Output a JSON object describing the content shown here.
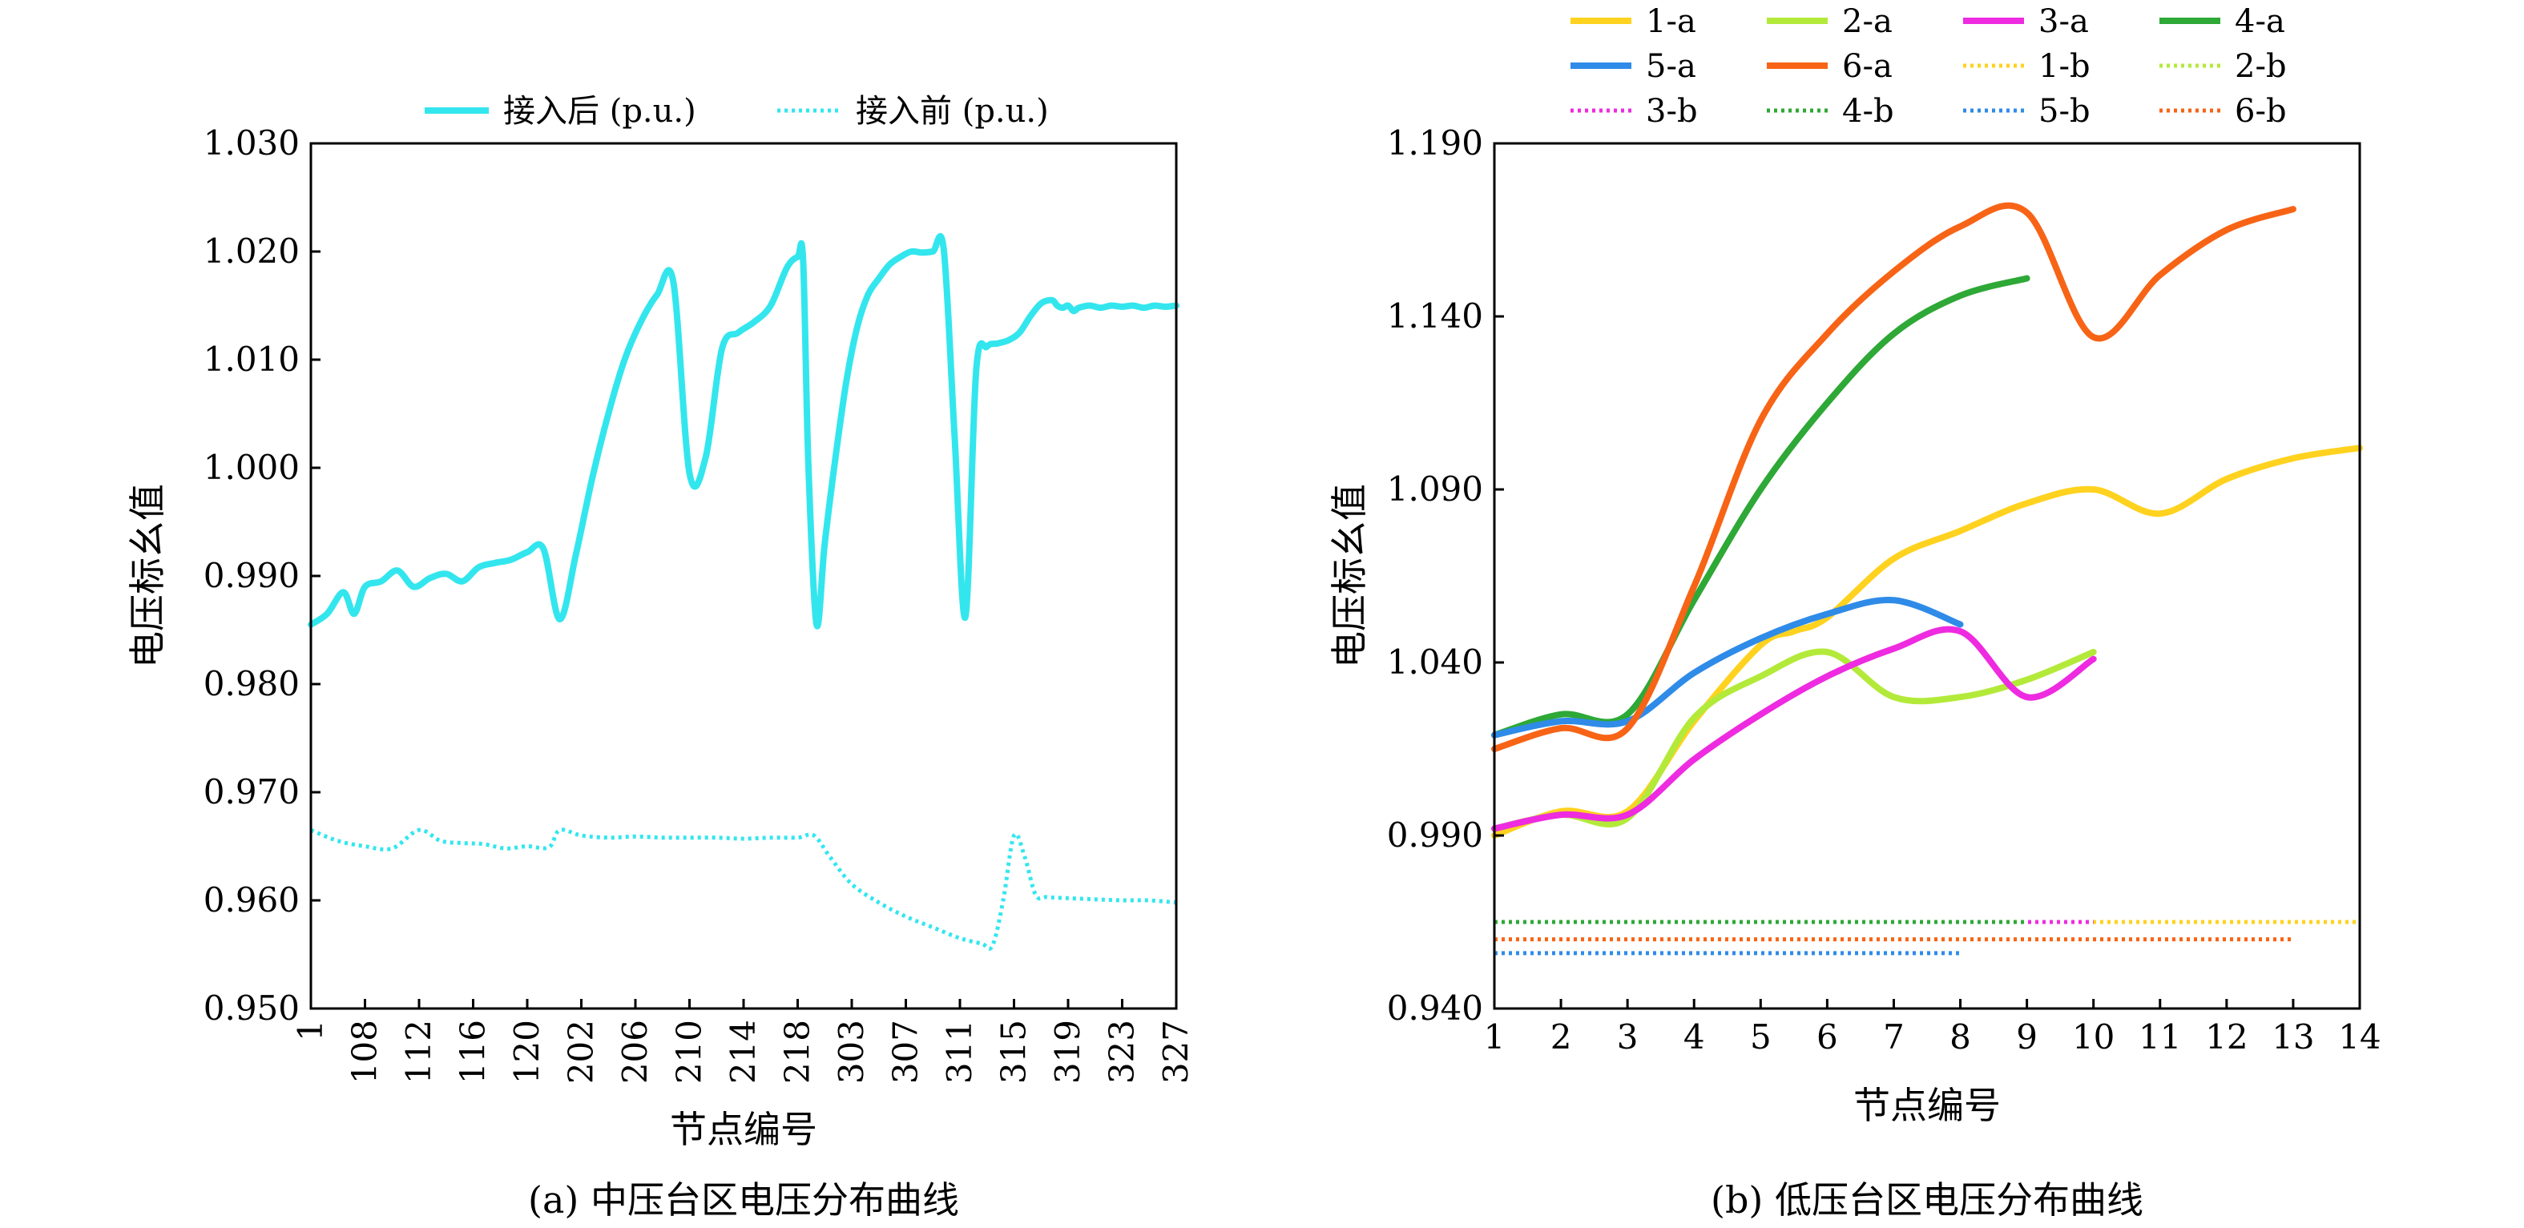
{
  "chart_data": [
    {
      "type": "line",
      "caption": "(a) 中压台区电压分布曲线",
      "xlabel": "节点编号",
      "ylabel": "电压标幺值",
      "ylim": [
        0.95,
        1.03
      ],
      "yticks": [
        "0.950",
        "0.960",
        "0.970",
        "0.980",
        "0.990",
        "1.000",
        "1.010",
        "1.020",
        "1.030"
      ],
      "xticks": [
        "1",
        "108",
        "112",
        "116",
        "120",
        "202",
        "206",
        "210",
        "214",
        "218",
        "303",
        "307",
        "311",
        "315",
        "319",
        "323",
        "327"
      ],
      "legend_position": "top",
      "series": [
        {
          "name": "接入后 (p.u.)",
          "color": "#33e6ee",
          "style": "solid",
          "x": [
            1,
            1.3,
            1.6,
            1.8,
            2.0,
            2.3,
            2.6,
            2.9,
            3.2,
            3.5,
            3.8,
            4.1,
            4.4,
            4.7,
            5.0,
            5.3,
            5.6,
            5.9,
            6.2,
            6.5,
            6.8,
            7.1,
            7.4,
            7.7,
            8.0,
            8.3,
            8.6,
            8.9,
            9.2,
            9.5,
            9.8,
            10.0,
            10.1,
            10.2,
            10.35,
            10.5,
            10.7,
            10.9,
            11.1,
            11.3,
            11.5,
            11.7,
            11.9,
            12.1,
            12.3,
            12.5,
            12.7,
            12.9,
            13.1,
            13.3,
            13.5,
            13.7,
            13.9,
            14.1,
            14.3,
            14.5,
            14.7,
            14.8,
            14.9,
            15.0,
            15.1,
            15.2,
            15.4,
            15.6,
            15.8,
            16.0,
            16.2,
            16.4,
            16.6,
            16.8,
            17.0
          ],
          "values": [
            0.9855,
            0.9865,
            0.9885,
            0.9865,
            0.989,
            0.9895,
            0.9905,
            0.989,
            0.9898,
            0.9902,
            0.9895,
            0.9908,
            0.9912,
            0.9915,
            0.9922,
            0.9925,
            0.986,
            0.992,
            0.999,
            1.005,
            1.01,
            1.0135,
            1.016,
            1.0172,
            0.9995,
            1.001,
            1.011,
            1.0125,
            1.0135,
            1.015,
            1.0185,
            1.0195,
            1.0192,
            1.0,
            0.9855,
            0.993,
            1.001,
            1.008,
            1.013,
            1.016,
            1.0175,
            1.0188,
            1.0195,
            1.02,
            1.0199,
            1.02,
            1.0202,
            1.003,
            0.9862,
            1.009,
            1.0112,
            1.0115,
            1.0118,
            1.0125,
            1.014,
            1.0152,
            1.0155,
            1.015,
            1.0148,
            1.015,
            1.0145,
            1.0148,
            1.015,
            1.0148,
            1.015,
            1.0149,
            1.015,
            1.0148,
            1.015,
            1.0149,
            1.015
          ]
        },
        {
          "name": "接入前 (p.u.)",
          "color": "#33e6ee",
          "style": "dotted",
          "x": [
            1,
            1.5,
            2.0,
            2.5,
            3.0,
            3.4,
            3.8,
            4.2,
            4.6,
            5.0,
            5.4,
            5.6,
            6.0,
            6.5,
            7.0,
            7.5,
            8.0,
            8.5,
            9.0,
            9.5,
            10.0,
            10.3,
            10.6,
            11.0,
            11.5,
            12.0,
            12.5,
            13.0,
            13.4,
            13.6,
            13.8,
            14.0,
            14.2,
            14.4,
            14.6,
            15.0,
            15.5,
            16.0,
            16.5,
            17.0
          ],
          "values": [
            0.9665,
            0.9655,
            0.965,
            0.9648,
            0.9665,
            0.9655,
            0.9653,
            0.9652,
            0.9648,
            0.965,
            0.9649,
            0.9665,
            0.966,
            0.9658,
            0.9659,
            0.9658,
            0.9658,
            0.9658,
            0.9657,
            0.9658,
            0.9658,
            0.966,
            0.964,
            0.9615,
            0.9598,
            0.9585,
            0.9575,
            0.9565,
            0.956,
            0.9558,
            0.96,
            0.966,
            0.964,
            0.9605,
            0.9603,
            0.9602,
            0.9601,
            0.96,
            0.96,
            0.9598
          ]
        }
      ]
    },
    {
      "type": "line",
      "caption": "(b) 低压台区电压分布曲线",
      "xlabel": "节点编号",
      "ylabel": "电压标幺值",
      "xlim": [
        1,
        14
      ],
      "ylim": [
        0.94,
        1.19
      ],
      "yticks": [
        "0.940",
        "0.990",
        "1.040",
        "1.090",
        "1.140",
        "1.190"
      ],
      "xticks": [
        "1",
        "2",
        "3",
        "4",
        "5",
        "6",
        "7",
        "8",
        "9",
        "10",
        "11",
        "12",
        "13",
        "14"
      ],
      "legend_position": "top",
      "series": [
        {
          "name": "1-a",
          "color": "#ffd21f",
          "style": "solid",
          "x": [
            1,
            2,
            3,
            4,
            5,
            5.5,
            6,
            7,
            8,
            9,
            10,
            11,
            12,
            13,
            14
          ],
          "values": [
            0.99,
            0.997,
            0.997,
            1.023,
            1.045,
            1.049,
            1.053,
            1.07,
            1.078,
            1.086,
            1.09,
            1.083,
            1.093,
            1.099,
            1.102
          ]
        },
        {
          "name": "2-a",
          "color": "#b3ea3a",
          "style": "solid",
          "x": [
            1,
            2,
            3,
            4,
            5,
            6,
            7,
            8,
            9,
            10
          ],
          "values": [
            0.992,
            0.996,
            0.995,
            1.024,
            1.036,
            1.043,
            1.03,
            1.03,
            1.035,
            1.043
          ]
        },
        {
          "name": "3-a",
          "color": "#ee2be0",
          "style": "solid",
          "x": [
            1,
            2,
            3,
            4,
            5,
            6,
            7,
            8,
            9,
            10
          ],
          "values": [
            0.992,
            0.996,
            0.996,
            1.012,
            1.025,
            1.036,
            1.044,
            1.049,
            1.03,
            1.041
          ]
        },
        {
          "name": "4-a",
          "color": "#2ea836",
          "style": "solid",
          "x": [
            1,
            2,
            3,
            4,
            5,
            6,
            7,
            8,
            9
          ],
          "values": [
            1.019,
            1.025,
            1.025,
            1.058,
            1.09,
            1.115,
            1.135,
            1.146,
            1.151
          ]
        },
        {
          "name": "5-a",
          "color": "#2f8be8",
          "style": "solid",
          "x": [
            1,
            2,
            3,
            4,
            5,
            6,
            7,
            8
          ],
          "values": [
            1.019,
            1.023,
            1.023,
            1.037,
            1.047,
            1.054,
            1.058,
            1.051
          ]
        },
        {
          "name": "6-a",
          "color": "#f76416",
          "style": "solid",
          "x": [
            1,
            2,
            3,
            4,
            5,
            6,
            7,
            8,
            9,
            10,
            11,
            12,
            13
          ],
          "values": [
            1.015,
            1.021,
            1.021,
            1.062,
            1.11,
            1.135,
            1.153,
            1.166,
            1.17,
            1.134,
            1.152,
            1.165,
            1.171
          ]
        },
        {
          "name": "1-b",
          "color": "#ffd21f",
          "style": "dotted",
          "x": [
            1,
            14
          ],
          "values": [
            0.965,
            0.965
          ]
        },
        {
          "name": "2-b",
          "color": "#b3ea3a",
          "style": "dotted",
          "x": [
            1,
            10
          ],
          "values": [
            0.965,
            0.965
          ]
        },
        {
          "name": "3-b",
          "color": "#ee2be0",
          "style": "dotted",
          "x": [
            1,
            10
          ],
          "values": [
            0.965,
            0.965
          ]
        },
        {
          "name": "4-b",
          "color": "#2ea836",
          "style": "dotted",
          "x": [
            1,
            9
          ],
          "values": [
            0.965,
            0.965
          ]
        },
        {
          "name": "5-b",
          "color": "#2f8be8",
          "style": "dotted",
          "x": [
            1,
            8
          ],
          "values": [
            0.956,
            0.956
          ]
        },
        {
          "name": "6-b",
          "color": "#f76416",
          "style": "dotted",
          "x": [
            1,
            13
          ],
          "values": [
            0.96,
            0.96
          ]
        }
      ]
    }
  ]
}
